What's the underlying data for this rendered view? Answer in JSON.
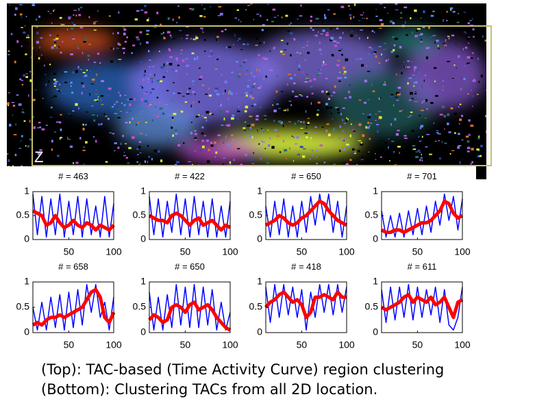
{
  "image_label": "Z",
  "caption": [
    "(Top): TAC-based (Time Activity Curve) region clustering",
    "(Bottom): Clustering TACs from all 2D location."
  ],
  "chart_data": [
    {
      "type": "line",
      "title": "# = 463",
      "x": [
        10,
        15,
        20,
        25,
        30,
        35,
        40,
        45,
        50,
        55,
        60,
        65,
        70,
        75,
        80,
        85,
        90,
        95,
        100
      ],
      "xlim": [
        10,
        100
      ],
      "xticks": [
        50,
        100
      ],
      "ylim": [
        0,
        1
      ],
      "yticks": [
        0,
        0.5,
        1
      ],
      "series": [
        {
          "color": "#0000ff",
          "values": [
            0.95,
            0.1,
            0.9,
            0.05,
            0.85,
            0.1,
            0.95,
            0.05,
            0.8,
            0.1,
            0.9,
            0.05,
            0.85,
            0.1,
            0.7,
            0.05,
            0.9,
            0.05,
            0.75
          ]
        },
        {
          "color": "#ff0000",
          "values": [
            0.6,
            0.55,
            0.5,
            0.3,
            0.35,
            0.5,
            0.35,
            0.25,
            0.3,
            0.4,
            0.3,
            0.25,
            0.35,
            0.3,
            0.2,
            0.3,
            0.25,
            0.2,
            0.3
          ]
        }
      ]
    },
    {
      "type": "line",
      "title": "# = 422",
      "x": [
        10,
        15,
        20,
        25,
        30,
        35,
        40,
        45,
        50,
        55,
        60,
        65,
        70,
        75,
        80,
        85,
        90,
        95,
        100
      ],
      "xlim": [
        10,
        100
      ],
      "xticks": [
        50,
        100
      ],
      "ylim": [
        0,
        1
      ],
      "yticks": [
        0,
        0.5,
        1
      ],
      "series": [
        {
          "color": "#0000ff",
          "values": [
            0.9,
            0.1,
            0.85,
            0.05,
            0.8,
            0.15,
            0.95,
            0.1,
            0.85,
            0.05,
            0.9,
            0.1,
            0.8,
            0.05,
            0.85,
            0.05,
            0.7,
            0.05,
            0.8
          ]
        },
        {
          "color": "#ff0000",
          "values": [
            0.5,
            0.45,
            0.4,
            0.4,
            0.35,
            0.5,
            0.55,
            0.5,
            0.4,
            0.3,
            0.4,
            0.45,
            0.3,
            0.35,
            0.4,
            0.3,
            0.2,
            0.3,
            0.25
          ]
        }
      ]
    },
    {
      "type": "line",
      "title": "# = 650",
      "x": [
        10,
        15,
        20,
        25,
        30,
        35,
        40,
        45,
        50,
        55,
        60,
        65,
        70,
        75,
        80,
        85,
        90,
        95,
        100
      ],
      "xlim": [
        10,
        100
      ],
      "xticks": [
        50,
        100
      ],
      "ylim": [
        0,
        1
      ],
      "yticks": [
        0,
        0.5,
        1
      ],
      "series": [
        {
          "color": "#0000ff",
          "values": [
            0.7,
            0.05,
            0.8,
            0.1,
            0.85,
            0.05,
            0.7,
            0.05,
            0.8,
            0.15,
            0.9,
            0.3,
            0.95,
            0.4,
            0.95,
            0.15,
            0.8,
            0.05,
            0.7
          ]
        },
        {
          "color": "#ff0000",
          "values": [
            0.3,
            0.35,
            0.4,
            0.5,
            0.45,
            0.35,
            0.3,
            0.35,
            0.45,
            0.5,
            0.6,
            0.7,
            0.8,
            0.75,
            0.6,
            0.5,
            0.4,
            0.35,
            0.3
          ]
        }
      ]
    },
    {
      "type": "line",
      "title": "# = 701",
      "x": [
        10,
        15,
        20,
        25,
        30,
        35,
        40,
        45,
        50,
        55,
        60,
        65,
        70,
        75,
        80,
        85,
        90,
        95,
        100
      ],
      "xlim": [
        10,
        100
      ],
      "xticks": [
        50,
        100
      ],
      "ylim": [
        0,
        1
      ],
      "yticks": [
        0,
        0.5,
        1
      ],
      "series": [
        {
          "color": "#0000ff",
          "values": [
            0.6,
            0.05,
            0.5,
            0.05,
            0.55,
            0.05,
            0.6,
            0.1,
            0.65,
            0.1,
            0.7,
            0.15,
            0.8,
            0.3,
            0.95,
            0.4,
            0.9,
            0.2,
            0.85
          ]
        },
        {
          "color": "#ff0000",
          "values": [
            0.2,
            0.15,
            0.15,
            0.2,
            0.2,
            0.15,
            0.2,
            0.25,
            0.3,
            0.35,
            0.35,
            0.4,
            0.5,
            0.6,
            0.8,
            0.75,
            0.55,
            0.45,
            0.5
          ]
        }
      ]
    },
    {
      "type": "line",
      "title": "# = 658",
      "x": [
        10,
        15,
        20,
        25,
        30,
        35,
        40,
        45,
        50,
        55,
        60,
        65,
        70,
        75,
        80,
        85,
        90,
        95,
        100
      ],
      "xlim": [
        10,
        100
      ],
      "xticks": [
        50,
        100
      ],
      "ylim": [
        0,
        1
      ],
      "yticks": [
        0,
        0.5,
        1
      ],
      "series": [
        {
          "color": "#0000ff",
          "values": [
            0.5,
            0.05,
            0.6,
            0.05,
            0.7,
            0.1,
            0.75,
            0.05,
            0.8,
            0.1,
            0.85,
            0.15,
            0.95,
            0.4,
            0.95,
            0.3,
            0.6,
            0.05,
            0.7
          ]
        },
        {
          "color": "#ff0000",
          "values": [
            0.15,
            0.2,
            0.15,
            0.25,
            0.3,
            0.3,
            0.35,
            0.3,
            0.35,
            0.4,
            0.45,
            0.5,
            0.65,
            0.8,
            0.85,
            0.7,
            0.3,
            0.2,
            0.4
          ]
        }
      ]
    },
    {
      "type": "line",
      "title": "# = 650",
      "x": [
        10,
        15,
        20,
        25,
        30,
        35,
        40,
        45,
        50,
        55,
        60,
        65,
        70,
        75,
        80,
        85,
        90,
        95,
        100
      ],
      "xlim": [
        10,
        100
      ],
      "xticks": [
        50,
        100
      ],
      "ylim": [
        0,
        1
      ],
      "yticks": [
        0,
        0.5,
        1
      ],
      "series": [
        {
          "color": "#0000ff",
          "values": [
            0.8,
            0.05,
            0.7,
            0.05,
            0.75,
            0.1,
            0.95,
            0.15,
            0.9,
            0.1,
            0.95,
            0.1,
            0.9,
            0.15,
            0.85,
            0.05,
            0.6,
            0.05,
            0.4
          ]
        },
        {
          "color": "#ff0000",
          "values": [
            0.25,
            0.35,
            0.3,
            0.2,
            0.25,
            0.5,
            0.55,
            0.5,
            0.4,
            0.55,
            0.6,
            0.45,
            0.5,
            0.55,
            0.45,
            0.3,
            0.2,
            0.1,
            0.05
          ]
        }
      ]
    },
    {
      "type": "line",
      "title": "# = 418",
      "x": [
        10,
        15,
        20,
        25,
        30,
        35,
        40,
        45,
        50,
        55,
        60,
        65,
        70,
        75,
        80,
        85,
        90,
        95,
        100
      ],
      "xlim": [
        10,
        100
      ],
      "xticks": [
        50,
        100
      ],
      "ylim": [
        0,
        1
      ],
      "yticks": [
        0,
        0.5,
        1
      ],
      "series": [
        {
          "color": "#0000ff",
          "values": [
            0.9,
            0.2,
            0.95,
            0.3,
            0.95,
            0.35,
            0.9,
            0.3,
            0.85,
            0.05,
            0.8,
            0.3,
            0.95,
            0.4,
            0.95,
            0.35,
            0.95,
            0.4,
            0.9
          ]
        },
        {
          "color": "#ff0000",
          "values": [
            0.5,
            0.6,
            0.65,
            0.75,
            0.8,
            0.7,
            0.6,
            0.65,
            0.55,
            0.3,
            0.4,
            0.7,
            0.7,
            0.75,
            0.7,
            0.65,
            0.8,
            0.7,
            0.7
          ]
        }
      ]
    },
    {
      "type": "line",
      "title": "# = 611",
      "x": [
        10,
        15,
        20,
        25,
        30,
        35,
        40,
        45,
        50,
        55,
        60,
        65,
        70,
        75,
        80,
        85,
        90,
        95,
        100
      ],
      "xlim": [
        10,
        100
      ],
      "xticks": [
        50,
        100
      ],
      "ylim": [
        0,
        1
      ],
      "yticks": [
        0,
        0.5,
        1
      ],
      "series": [
        {
          "color": "#0000ff",
          "values": [
            0.85,
            0.2,
            0.9,
            0.25,
            0.9,
            0.3,
            0.95,
            0.25,
            0.9,
            0.3,
            0.85,
            0.35,
            0.9,
            0.2,
            0.85,
            0.15,
            0.05,
            0.3,
            0.9
          ]
        },
        {
          "color": "#ff0000",
          "values": [
            0.5,
            0.45,
            0.5,
            0.55,
            0.6,
            0.7,
            0.75,
            0.6,
            0.7,
            0.65,
            0.6,
            0.7,
            0.55,
            0.6,
            0.7,
            0.5,
            0.3,
            0.6,
            0.65
          ]
        }
      ]
    }
  ]
}
